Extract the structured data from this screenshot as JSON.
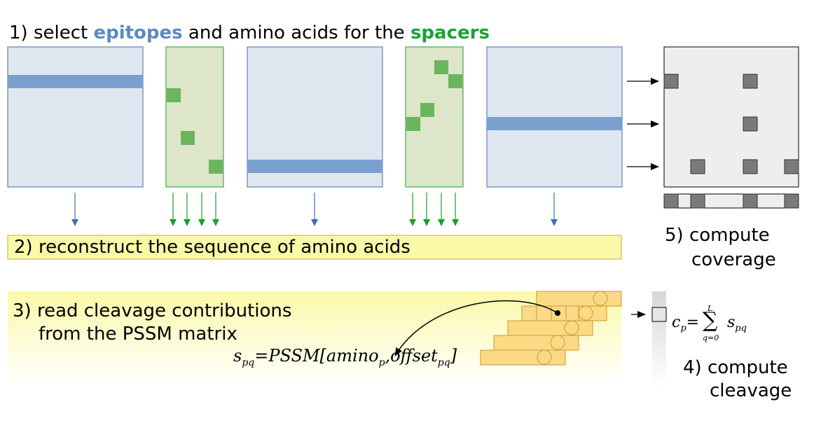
{
  "step1": {
    "prefix": "1) select",
    "epitopes": "epitopes",
    "middle": "and amino acids for the",
    "spacers": "spacers"
  },
  "step2": {
    "label": "2) reconstruct the sequence of amino acids"
  },
  "step3": {
    "line1": "3) read cleavage contributions",
    "line2": "from the PSSM matrix",
    "formula": "s_pq = PSSM[amino_p, offset_pq]"
  },
  "step4": {
    "line1": "4) compute",
    "line2": "cleavage",
    "formula": "c_p = Σ_{q=0}^{L} s_pq"
  },
  "step5": {
    "line1": "5) compute",
    "line2": "coverage"
  },
  "colors": {
    "epitope_panel": "#dfe6f0",
    "epitope_bar": "#7aa0d0",
    "epitope_arrow": "#3f6fae",
    "spacer_panel": "#dde6c9",
    "spacer_square": "#6bb55e",
    "spacer_arrow": "#1f9b2e",
    "sequence_bar": "#fbf9a8",
    "pssm_row": "#fbd985",
    "coverage_panel": "#eeeeee",
    "coverage_cell": "#7a7a7a"
  }
}
